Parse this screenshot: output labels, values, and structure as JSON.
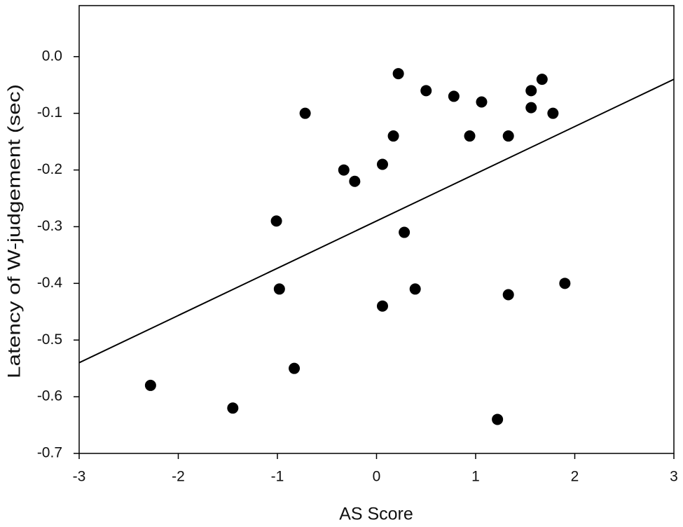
{
  "chart_data": {
    "type": "scatter",
    "x_label": "AS Score",
    "y_label": "Latency of W-judgement (sec)",
    "color": "#000000",
    "x": [
      -2.28,
      -1.45,
      -0.83,
      -1.01,
      -0.98,
      -0.72,
      -0.33,
      -0.22,
      0.06,
      0.06,
      0.17,
      0.22,
      0.28,
      0.39,
      0.5,
      0.78,
      0.94,
      1.06,
      1.22,
      1.33,
      1.33,
      1.56,
      1.56,
      1.67,
      1.78,
      1.9
    ],
    "values": [
      -0.58,
      -0.62,
      -0.55,
      -0.29,
      -0.41,
      -0.1,
      -0.2,
      -0.22,
      -0.19,
      -0.44,
      -0.14,
      -0.03,
      -0.31,
      -0.41,
      -0.06,
      -0.07,
      -0.14,
      -0.08,
      -0.64,
      -0.14,
      -0.42,
      -0.06,
      -0.09,
      -0.04,
      -0.1,
      -0.4
    ],
    "fit_line": {
      "x": [
        -3,
        3
      ],
      "y": [
        -0.54,
        -0.04
      ]
    },
    "xlim": [
      -3,
      3
    ],
    "ylim": [
      -0.7,
      0.09
    ],
    "xticks": [
      -3,
      -2,
      -1,
      0,
      1,
      2,
      3
    ],
    "yticks": [
      {
        "value": 0,
        "label": "0.0"
      },
      -0.1,
      -0.2,
      -0.3,
      -0.4,
      -0.5,
      -0.6,
      -0.7
    ]
  }
}
